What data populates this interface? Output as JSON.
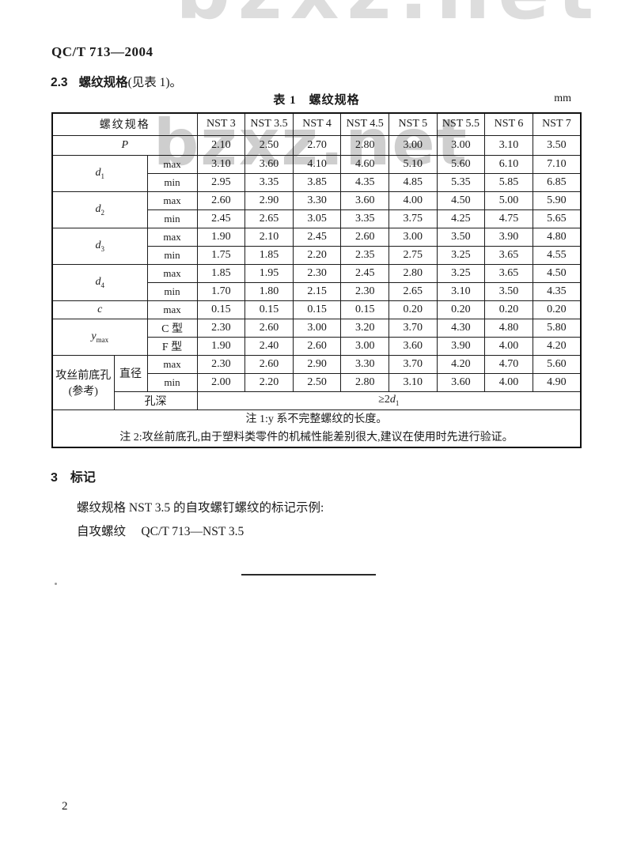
{
  "page": {
    "doc_number": "QC/T 713—2004",
    "clause_number": "2.3",
    "clause_title": "螺纹规格",
    "clause_rest": "(见表 1)。",
    "page_number": "2",
    "watermark": "bzxz.net"
  },
  "table": {
    "title": "表 1　螺纹规格",
    "unit": "mm",
    "corner": "螺纹规格",
    "columns": [
      "NST 3",
      "NST 3.5",
      "NST 4",
      "NST 4.5",
      "NST 5",
      "NST 5.5",
      "NST 6",
      "NST 7"
    ],
    "labels": {
      "p": "P",
      "d_base": "d",
      "d1_sub": "1",
      "d2_sub": "2",
      "d3_sub": "3",
      "d4_sub": "4",
      "c": "c",
      "y_base": "y",
      "y_sub": "max",
      "max": "max",
      "min": "min",
      "c_type": "C 型",
      "f_type": "F 型",
      "tapping_line1": "攻丝前底孔",
      "tapping_line2": "(参考)",
      "diameter": "直径",
      "hole_depth": "孔深",
      "depth_prefix": "≥2",
      "depth_base": "d",
      "depth_sub": "1"
    },
    "values": {
      "p": [
        "2.10",
        "2.50",
        "2.70",
        "2.80",
        "3.00",
        "3.00",
        "3.10",
        "3.50"
      ],
      "d1_max": [
        "3.10",
        "3.60",
        "4.10",
        "4.60",
        "5.10",
        "5.60",
        "6.10",
        "7.10"
      ],
      "d1_min": [
        "2.95",
        "3.35",
        "3.85",
        "4.35",
        "4.85",
        "5.35",
        "5.85",
        "6.85"
      ],
      "d2_max": [
        "2.60",
        "2.90",
        "3.30",
        "3.60",
        "4.00",
        "4.50",
        "5.00",
        "5.90"
      ],
      "d2_min": [
        "2.45",
        "2.65",
        "3.05",
        "3.35",
        "3.75",
        "4.25",
        "4.75",
        "5.65"
      ],
      "d3_max": [
        "1.90",
        "2.10",
        "2.45",
        "2.60",
        "3.00",
        "3.50",
        "3.90",
        "4.80"
      ],
      "d3_min": [
        "1.75",
        "1.85",
        "2.20",
        "2.35",
        "2.75",
        "3.25",
        "3.65",
        "4.55"
      ],
      "d4_max": [
        "1.85",
        "1.95",
        "2.30",
        "2.45",
        "2.80",
        "3.25",
        "3.65",
        "4.50"
      ],
      "d4_min": [
        "1.70",
        "1.80",
        "2.15",
        "2.30",
        "2.65",
        "3.10",
        "3.50",
        "4.35"
      ],
      "c_max": [
        "0.15",
        "0.15",
        "0.15",
        "0.15",
        "0.20",
        "0.20",
        "0.20",
        "0.20"
      ],
      "y_c": [
        "2.30",
        "2.60",
        "3.00",
        "3.20",
        "3.70",
        "4.30",
        "4.80",
        "5.80"
      ],
      "y_f": [
        "1.90",
        "2.40",
        "2.60",
        "3.00",
        "3.60",
        "3.90",
        "4.00",
        "4.20"
      ],
      "hole_max": [
        "2.30",
        "2.60",
        "2.90",
        "3.30",
        "3.70",
        "4.20",
        "4.70",
        "5.60"
      ],
      "hole_min": [
        "2.00",
        "2.20",
        "2.50",
        "2.80",
        "3.10",
        "3.60",
        "4.00",
        "4.90"
      ]
    },
    "notes": [
      "注 1:y 系不完整螺纹的长度。",
      "注 2:攻丝前底孔,由于塑料类零件的机械性能差别很大,建议在使用时先进行验证。"
    ]
  },
  "section3": {
    "number": "3",
    "title": "标记",
    "example_intro": "螺纹规格 NST 3.5 的自攻螺钉螺纹的标记示例:",
    "example": "自攻螺纹　 QC/T 713—NST 3.5"
  }
}
